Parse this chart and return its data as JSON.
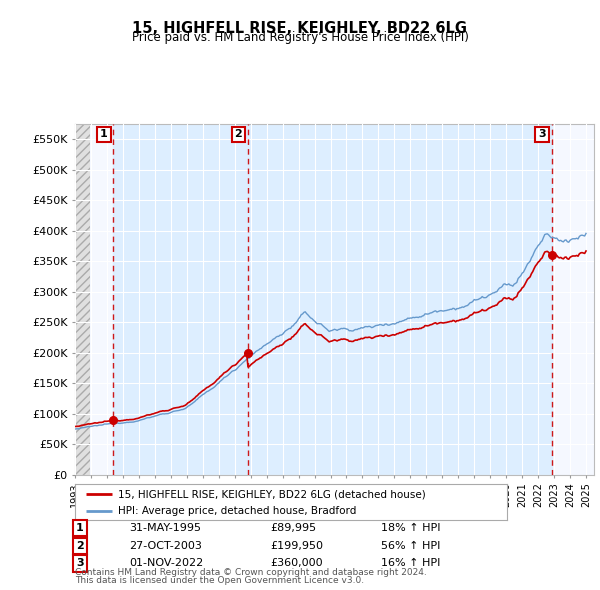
{
  "title": "15, HIGHFELL RISE, KEIGHLEY, BD22 6LG",
  "subtitle": "Price paid vs. HM Land Registry's House Price Index (HPI)",
  "legend_property": "15, HIGHFELL RISE, KEIGHLEY, BD22 6LG (detached house)",
  "legend_hpi": "HPI: Average price, detached house, Bradford",
  "footnote1": "Contains HM Land Registry data © Crown copyright and database right 2024.",
  "footnote2": "This data is licensed under the Open Government Licence v3.0.",
  "sales": [
    {
      "label": "1",
      "date": "31-MAY-1995",
      "price": 89995,
      "hpi_pct": "18% ↑ HPI",
      "x": 1995.41
    },
    {
      "label": "2",
      "date": "27-OCT-2003",
      "price": 199950,
      "hpi_pct": "56% ↑ HPI",
      "x": 2003.82
    },
    {
      "label": "3",
      "date": "01-NOV-2022",
      "price": 360000,
      "hpi_pct": "16% ↑ HPI",
      "x": 2022.84
    }
  ],
  "property_color": "#cc0000",
  "hpi_color": "#6699cc",
  "sale_vline_color": "#cc0000",
  "shade_color": "#ddeeff",
  "ylim": [
    0,
    575000
  ],
  "xlim": [
    1993.0,
    2025.5
  ],
  "yticks": [
    0,
    50000,
    100000,
    150000,
    200000,
    250000,
    300000,
    350000,
    400000,
    450000,
    500000,
    550000
  ],
  "background_color": "#ffffff",
  "plot_bg_color": "#f5f8ff",
  "grid_color": "#cccccc",
  "hatch_region_end": 1993.92
}
